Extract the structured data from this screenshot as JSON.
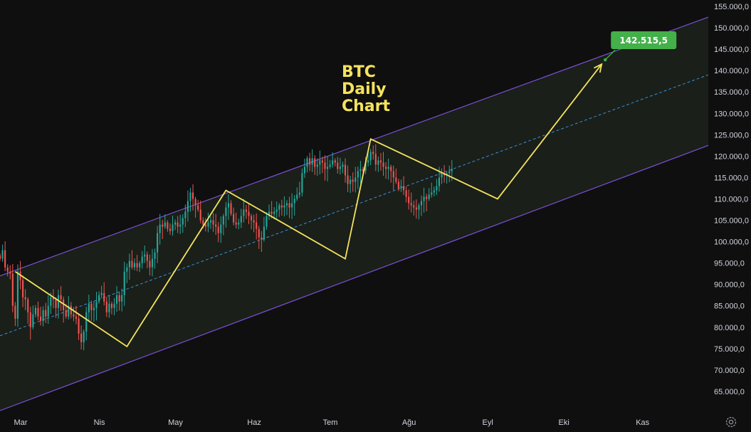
{
  "chart_data": {
    "type": "candlestick",
    "title": "BTC\nDaily\nChart",
    "x_ticks": [
      "Mar",
      "Nis",
      "May",
      "Haz",
      "Tem",
      "Ağu",
      "Eyl",
      "Eki",
      "Kas"
    ],
    "y_ticks": [
      "155.000,0",
      "150.000,0",
      "145.000,0",
      "140.000,0",
      "135.000,0",
      "130.000,0",
      "125.000,0",
      "120.000,0",
      "115.000,0",
      "110.000,0",
      "105.000,0",
      "100.000,0",
      "95.000,0",
      "90.000,0",
      "85.000,0",
      "80.000,0",
      "75.000,0",
      "70.000,0",
      "65.000,0"
    ],
    "y_tick_values": [
      155000,
      150000,
      145000,
      140000,
      135000,
      130000,
      125000,
      120000,
      115000,
      110000,
      105000,
      100000,
      95000,
      90000,
      85000,
      80000,
      75000,
      70000,
      65000
    ],
    "ylim": [
      60000,
      156500
    ],
    "xlim": [
      "2025-02-22",
      "2025-11-28"
    ],
    "target_label": "142.515,5",
    "target_value": 142515.5,
    "channel": {
      "upper": [
        {
          "date": "2025-02-22",
          "value": 92000
        },
        {
          "date": "2025-11-28",
          "value": 152500
        }
      ],
      "lower": [
        {
          "date": "2025-02-22",
          "value": 60500
        },
        {
          "date": "2025-11-28",
          "value": 122500
        }
      ],
      "mid": [
        {
          "date": "2025-02-22",
          "value": 78000
        },
        {
          "date": "2025-11-28",
          "value": 139000
        }
      ]
    },
    "wave_path": [
      {
        "date": "2025-02-28",
        "value": 93000
      },
      {
        "date": "2025-04-13",
        "value": 75500
      },
      {
        "date": "2025-05-22",
        "value": 112000
      },
      {
        "date": "2025-07-08",
        "value": 96000
      },
      {
        "date": "2025-07-18",
        "value": 124000
      },
      {
        "date": "2025-09-06",
        "value": 110000
      },
      {
        "date": "2025-10-17",
        "value": 141500
      }
    ],
    "candles_start": "2025-02-22",
    "candles_close": [
      96000,
      98000,
      94000,
      93000,
      92500,
      85000,
      82000,
      93000,
      91000,
      87000,
      86500,
      83500,
      80000,
      83000,
      84500,
      82500,
      81500,
      84000,
      82500,
      85000,
      87000,
      86500,
      84500,
      87500,
      86500,
      84000,
      82500,
      85000,
      83000,
      82500,
      82000,
      78500,
      76500,
      79000,
      83500,
      85500,
      84000,
      84500,
      86000,
      87500,
      88000,
      86000,
      83500,
      85500,
      84500,
      85500,
      87500,
      86000,
      87500,
      93000,
      94000,
      95500,
      94000,
      95000,
      94000,
      95000,
      96500,
      97000,
      95500,
      94000,
      96000,
      97500,
      102000,
      104000,
      103500,
      104500,
      103000,
      102500,
      104000,
      104500,
      103500,
      104000,
      105500,
      107000,
      109500,
      111500,
      110000,
      108500,
      107500,
      105000,
      104000,
      103500,
      104500,
      105000,
      104000,
      103500,
      102000,
      104000,
      106000,
      108000,
      109000,
      106500,
      104500,
      104000,
      104500,
      106000,
      107500,
      107000,
      106000,
      105000,
      104500,
      103000,
      101000,
      100500,
      103500,
      106000,
      107000,
      106500,
      107000,
      107500,
      108500,
      108000,
      108500,
      109000,
      108000,
      109000,
      110000,
      111000,
      111500,
      116000,
      117500,
      119500,
      118000,
      119500,
      117500,
      118000,
      119000,
      118500,
      117000,
      117500,
      118000,
      119000,
      118500,
      117000,
      117500,
      118000,
      115500,
      113500,
      114500,
      114000,
      115000,
      116500,
      117000,
      116500,
      118500,
      119000,
      121000,
      120500,
      118000,
      119000,
      118500,
      117500,
      117000,
      117500,
      116500,
      115000,
      114000,
      112500,
      113000,
      112000,
      110500,
      109000,
      108500,
      108000,
      107500,
      108500,
      109500,
      110500,
      110000,
      111000,
      111500,
      112000,
      113000,
      115000,
      116000,
      115500,
      116000,
      116500,
      117000
    ]
  }
}
